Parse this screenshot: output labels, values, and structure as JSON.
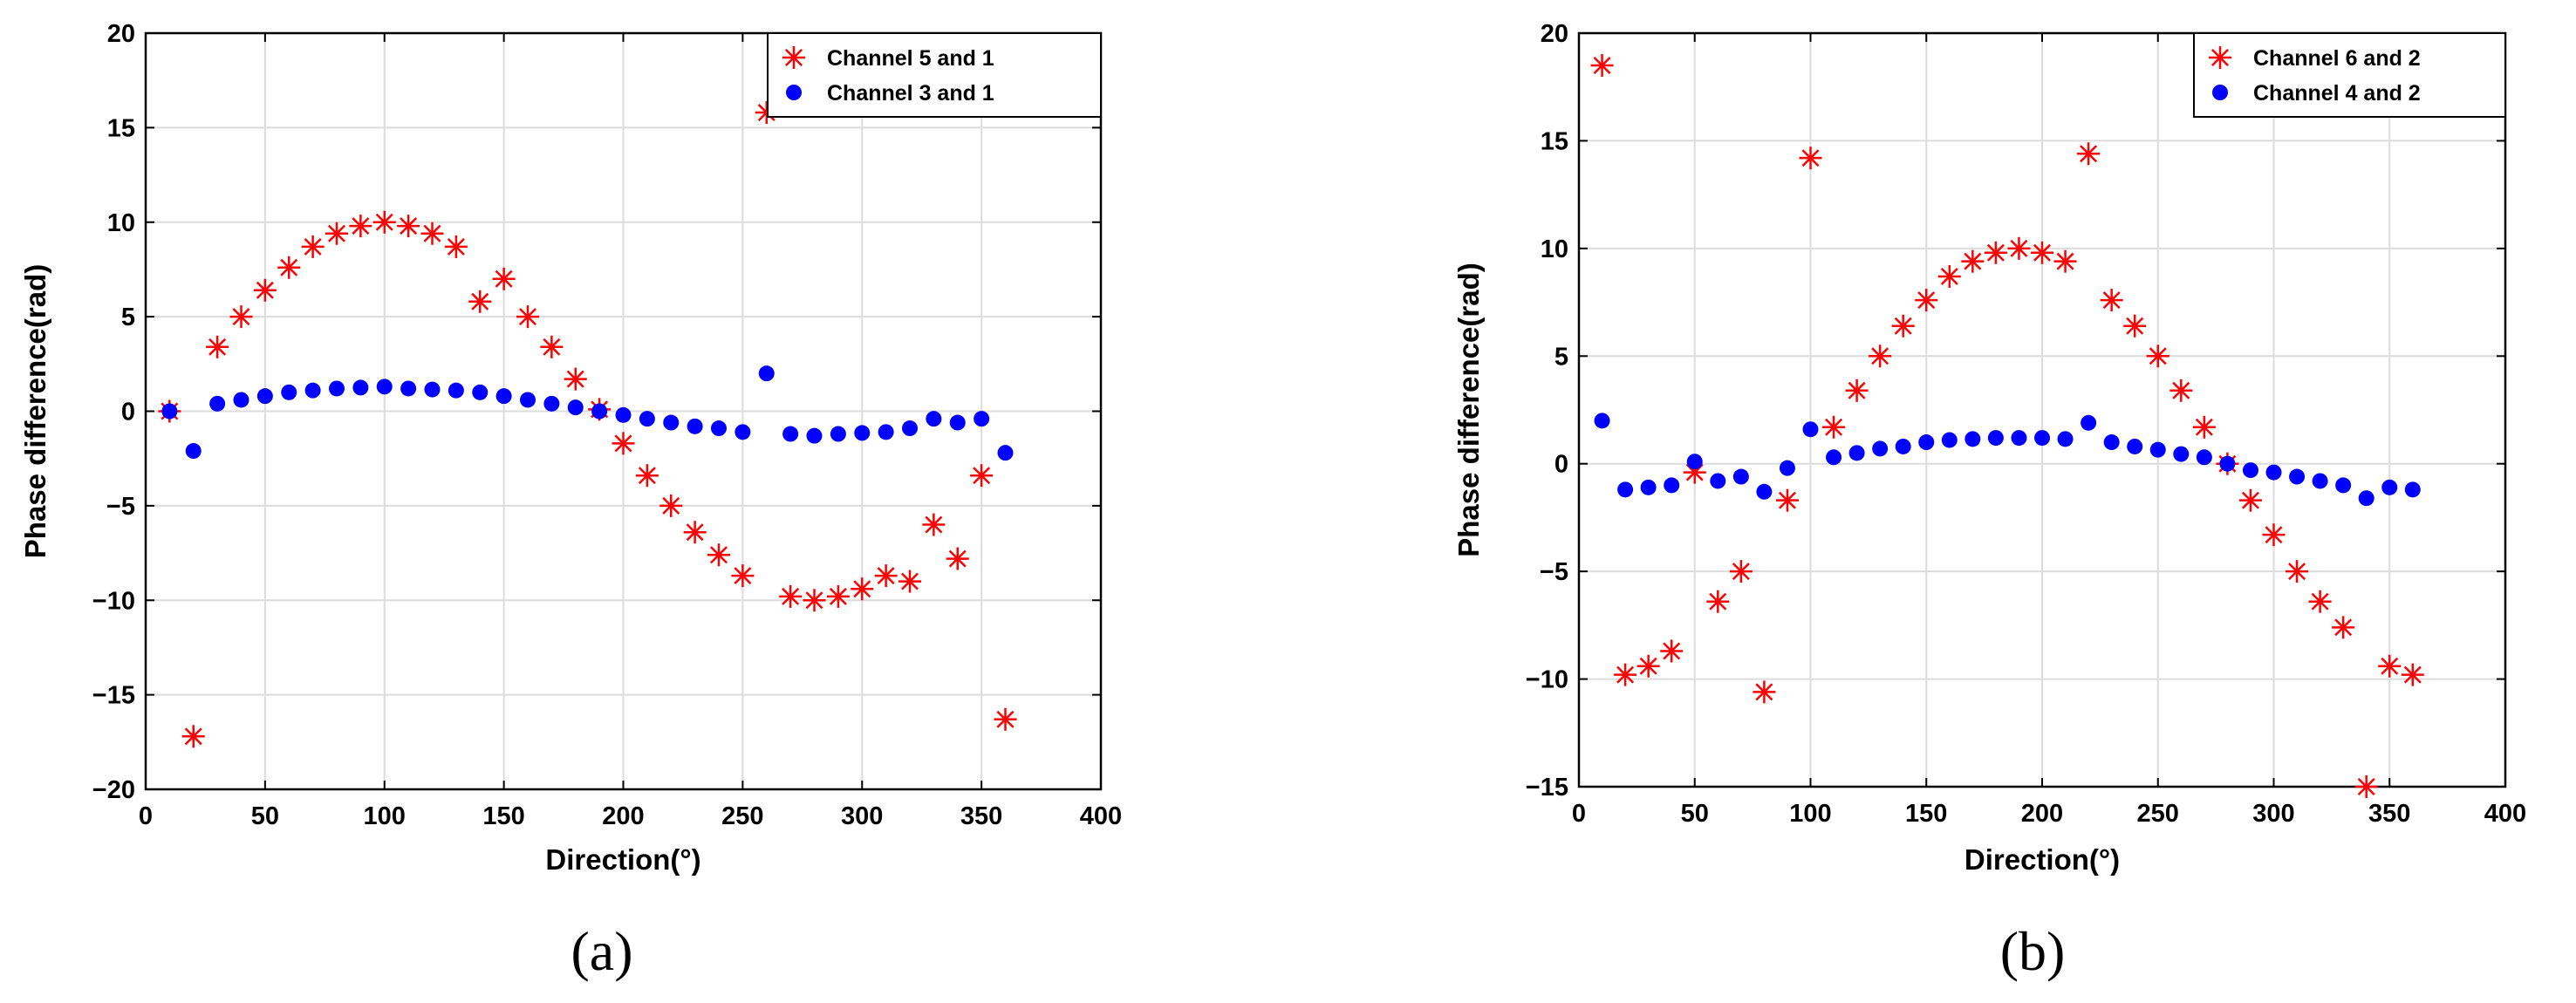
{
  "chart_data": [
    {
      "type": "scatter",
      "panel_label": "(a)",
      "xlabel": "Direction(°)",
      "ylabel": "Phase difference(rad)",
      "xlim": [
        0,
        400
      ],
      "ylim": [
        -20,
        20
      ],
      "xticks": [
        0,
        50,
        100,
        150,
        200,
        250,
        300,
        350,
        400
      ],
      "yticks": [
        -20,
        -15,
        -10,
        -5,
        0,
        5,
        10,
        15,
        20
      ],
      "xtick_labels": [
        "0",
        "50",
        "100",
        "150",
        "200",
        "250",
        "300",
        "350",
        "400"
      ],
      "ytick_labels": [
        "−20",
        "−15",
        "−10",
        "−5",
        "0",
        "5",
        "10",
        "15",
        "20"
      ],
      "grid": true,
      "legend_position": "top-right",
      "series": [
        {
          "name": "Channel 5 and 1",
          "marker": "asterisk",
          "color": "#ff0000",
          "x": [
            10,
            20,
            30,
            40,
            50,
            60,
            70,
            80,
            90,
            100,
            110,
            120,
            130,
            140,
            150,
            160,
            170,
            180,
            190,
            200,
            210,
            220,
            230,
            240,
            250,
            260,
            270,
            280,
            290,
            300,
            310,
            320,
            330,
            340,
            350,
            360
          ],
          "y": [
            0,
            -17.2,
            3.4,
            5.0,
            6.4,
            7.6,
            8.7,
            9.4,
            9.8,
            10.0,
            9.8,
            9.4,
            8.7,
            5.8,
            7.0,
            5.0,
            3.4,
            1.7,
            0.1,
            -1.7,
            -3.4,
            -5.0,
            -6.4,
            -7.6,
            -8.7,
            15.8,
            -9.8,
            -10.0,
            -9.8,
            -9.4,
            -8.7,
            -9.0,
            -6.0,
            -7.8,
            -3.4,
            -16.3
          ]
        },
        {
          "name": "Channel 3 and 1",
          "marker": "dot",
          "color": "#0000ff",
          "x": [
            10,
            20,
            30,
            40,
            50,
            60,
            70,
            80,
            90,
            100,
            110,
            120,
            130,
            140,
            150,
            160,
            170,
            180,
            190,
            200,
            210,
            220,
            230,
            240,
            250,
            260,
            270,
            280,
            290,
            300,
            310,
            320,
            330,
            340,
            350,
            360
          ],
          "y": [
            0,
            -2.1,
            0.4,
            0.6,
            0.8,
            1.0,
            1.1,
            1.2,
            1.25,
            1.3,
            1.2,
            1.15,
            1.1,
            1.0,
            0.8,
            0.6,
            0.4,
            0.2,
            0,
            -0.2,
            -0.4,
            -0.6,
            -0.8,
            -0.9,
            -1.1,
            2.0,
            -1.2,
            -1.3,
            -1.2,
            -1.15,
            -1.1,
            -0.9,
            -0.4,
            -0.6,
            -0.4,
            -2.2
          ]
        }
      ]
    },
    {
      "type": "scatter",
      "panel_label": "(b)",
      "xlabel": "Direction(°)",
      "ylabel": "Phase difference(rad)",
      "xlim": [
        0,
        400
      ],
      "ylim": [
        -15,
        20
      ],
      "xticks": [
        0,
        50,
        100,
        150,
        200,
        250,
        300,
        350,
        400
      ],
      "yticks": [
        -15,
        -10,
        -5,
        0,
        5,
        10,
        15,
        20
      ],
      "xtick_labels": [
        "0",
        "50",
        "100",
        "150",
        "200",
        "250",
        "300",
        "350",
        "400"
      ],
      "ytick_labels": [
        "−15",
        "−10",
        "−5",
        "0",
        "5",
        "10",
        "15",
        "20"
      ],
      "grid": true,
      "legend_position": "top-right",
      "series": [
        {
          "name": "Channel 6 and 2",
          "marker": "asterisk",
          "color": "#ff0000",
          "x": [
            10,
            20,
            30,
            40,
            50,
            60,
            70,
            80,
            90,
            100,
            110,
            120,
            130,
            140,
            150,
            160,
            170,
            180,
            190,
            200,
            210,
            220,
            230,
            240,
            250,
            260,
            270,
            280,
            290,
            300,
            310,
            320,
            330,
            340,
            350,
            360
          ],
          "y": [
            18.5,
            -9.8,
            -9.4,
            -8.7,
            -0.4,
            -6.4,
            -5.0,
            -10.6,
            -1.7,
            14.2,
            1.7,
            3.4,
            5.0,
            6.4,
            7.6,
            8.7,
            9.4,
            9.8,
            10.0,
            9.8,
            9.4,
            14.4,
            7.6,
            6.4,
            5.0,
            3.4,
            1.7,
            0,
            -1.7,
            -3.3,
            -5.0,
            -6.4,
            -7.6,
            -15.0,
            -9.4,
            -9.8
          ]
        },
        {
          "name": "Channel 4 and 2",
          "marker": "dot",
          "color": "#0000ff",
          "x": [
            10,
            20,
            30,
            40,
            50,
            60,
            70,
            80,
            90,
            100,
            110,
            120,
            130,
            140,
            150,
            160,
            170,
            180,
            190,
            200,
            210,
            220,
            230,
            240,
            250,
            260,
            270,
            280,
            290,
            300,
            310,
            320,
            330,
            340,
            350,
            360
          ],
          "y": [
            2.0,
            -1.2,
            -1.1,
            -1.0,
            0.1,
            -0.8,
            -0.6,
            -1.3,
            -0.2,
            1.6,
            0.3,
            0.5,
            0.7,
            0.8,
            1.0,
            1.1,
            1.15,
            1.2,
            1.2,
            1.2,
            1.15,
            1.9,
            1.0,
            0.8,
            0.65,
            0.45,
            0.3,
            0,
            -0.3,
            -0.4,
            -0.6,
            -0.8,
            -1.0,
            -1.6,
            -1.1,
            -1.2
          ]
        }
      ]
    }
  ]
}
